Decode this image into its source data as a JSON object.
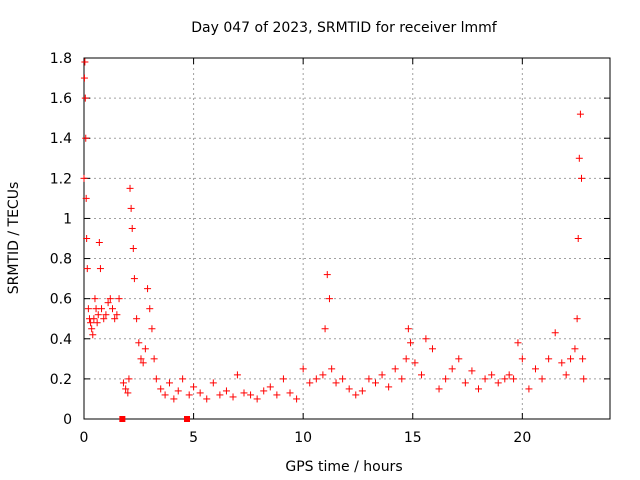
{
  "chart_data": {
    "type": "scatter",
    "title": "Day 047 of 2023, SRMTID for receiver lmmf",
    "xlabel": "GPS time / hours",
    "ylabel": "SRMTID / TECUs",
    "xlim": [
      0,
      24
    ],
    "ylim": [
      0,
      1.8
    ],
    "xticks": [
      0,
      5,
      10,
      15,
      20
    ],
    "yticks": [
      0,
      0.2,
      0.4,
      0.6,
      0.8,
      1,
      1.2,
      1.4,
      1.6,
      1.8
    ],
    "ytick_labels": [
      "0",
      "0.2",
      "0.4",
      "0.6",
      "0.8",
      "1",
      "1.2",
      "1.4",
      "1.6",
      "1.8"
    ],
    "grid": true,
    "marker": "plus",
    "color": "#ff0000",
    "series": [
      {
        "name": "SRMTID",
        "x": [
          0.0,
          0.02,
          0.04,
          0.06,
          0.08,
          0.1,
          0.12,
          0.15,
          0.2,
          0.25,
          0.3,
          0.35,
          0.4,
          0.45,
          0.5,
          0.55,
          0.6,
          0.65,
          0.7,
          0.75,
          0.8,
          0.9,
          1.0,
          1.1,
          1.2,
          1.3,
          1.4,
          1.5,
          1.6,
          1.8,
          1.9,
          2.0,
          2.05,
          2.1,
          2.15,
          2.2,
          2.25,
          2.3,
          2.4,
          2.5,
          2.6,
          2.7,
          2.8,
          2.9,
          3.0,
          3.1,
          3.2,
          3.3,
          3.5,
          3.7,
          3.9,
          4.1,
          4.3,
          4.5,
          4.8,
          5.0,
          5.3,
          5.6,
          5.9,
          6.2,
          6.5,
          6.8,
          7.0,
          7.3,
          7.6,
          7.9,
          8.2,
          8.5,
          8.8,
          9.1,
          9.4,
          9.7,
          10.0,
          10.3,
          10.6,
          10.9,
          11.0,
          11.1,
          11.2,
          11.3,
          11.5,
          11.8,
          12.1,
          12.4,
          12.7,
          13.0,
          13.3,
          13.6,
          13.9,
          14.2,
          14.5,
          14.7,
          14.8,
          14.9,
          15.1,
          15.4,
          15.6,
          15.9,
          16.2,
          16.5,
          16.8,
          17.1,
          17.4,
          17.7,
          18.0,
          18.3,
          18.6,
          18.9,
          19.2,
          19.4,
          19.6,
          19.8,
          20.0,
          20.3,
          20.6,
          20.9,
          21.2,
          21.5,
          21.8,
          22.0,
          22.2,
          22.4,
          22.5,
          22.55,
          22.6,
          22.65,
          22.7,
          22.75,
          22.8
        ],
        "y": [
          1.2,
          1.7,
          1.78,
          1.6,
          1.4,
          1.1,
          0.9,
          0.75,
          0.55,
          0.5,
          0.48,
          0.45,
          0.42,
          0.5,
          0.6,
          0.55,
          0.48,
          0.52,
          0.88,
          0.75,
          0.55,
          0.5,
          0.52,
          0.58,
          0.6,
          0.55,
          0.5,
          0.52,
          0.6,
          0.18,
          0.15,
          0.13,
          0.2,
          1.15,
          1.05,
          0.95,
          0.85,
          0.7,
          0.5,
          0.38,
          0.3,
          0.28,
          0.35,
          0.65,
          0.55,
          0.45,
          0.3,
          0.2,
          0.15,
          0.12,
          0.18,
          0.1,
          0.14,
          0.2,
          0.12,
          0.16,
          0.13,
          0.1,
          0.18,
          0.12,
          0.14,
          0.11,
          0.22,
          0.13,
          0.12,
          0.1,
          0.14,
          0.16,
          0.12,
          0.2,
          0.13,
          0.1,
          0.25,
          0.18,
          0.2,
          0.22,
          0.45,
          0.72,
          0.6,
          0.25,
          0.18,
          0.2,
          0.15,
          0.12,
          0.14,
          0.2,
          0.18,
          0.22,
          0.16,
          0.25,
          0.2,
          0.3,
          0.45,
          0.38,
          0.28,
          0.22,
          0.4,
          0.35,
          0.15,
          0.2,
          0.25,
          0.3,
          0.18,
          0.24,
          0.15,
          0.2,
          0.22,
          0.18,
          0.2,
          0.22,
          0.2,
          0.38,
          0.3,
          0.15,
          0.25,
          0.2,
          0.3,
          0.43,
          0.28,
          0.22,
          0.3,
          0.35,
          0.5,
          0.9,
          1.3,
          1.52,
          1.2,
          0.3,
          0.2
        ],
        "zero_values_x": [
          1.75,
          4.7
        ]
      }
    ]
  }
}
